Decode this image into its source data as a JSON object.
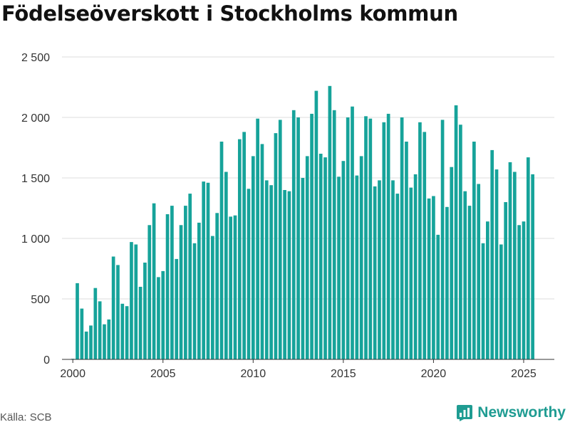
{
  "title": "Födelseöverskott i Stockholms kommun",
  "source": "Källa: SCB",
  "brand": {
    "name": "Newsworthy",
    "icon": "newsworthy-logo-icon"
  },
  "colors": {
    "bar": "#16a39a",
    "grid": "#dddddd",
    "axis": "#333333",
    "brand": "#1f9c92"
  },
  "chart_data": {
    "type": "bar",
    "title": "Födelseöverskott i Stockholms kommun",
    "xlabel": "",
    "ylabel": "",
    "ylim": [
      0,
      2500
    ],
    "yticks": [
      0,
      500,
      1000,
      1500,
      2000,
      2500
    ],
    "ytick_labels": [
      "0",
      "500",
      "1 000",
      "1 500",
      "2 000",
      "2 500"
    ],
    "xlim": [
      1999.4,
      2026.7
    ],
    "xticks": [
      2000,
      2005,
      2010,
      2015,
      2020,
      2025
    ],
    "xtick_labels": [
      "2000",
      "2005",
      "2010",
      "2015",
      "2020",
      "2025"
    ],
    "grid": true,
    "start": "2000 Q1",
    "frequency": "quarterly",
    "values": [
      5,
      630,
      420,
      230,
      280,
      590,
      480,
      290,
      330,
      850,
      780,
      460,
      440,
      970,
      950,
      600,
      800,
      1110,
      1290,
      680,
      730,
      1200,
      1270,
      830,
      1110,
      1270,
      1370,
      960,
      1130,
      1470,
      1460,
      1020,
      1210,
      1800,
      1550,
      1180,
      1190,
      1820,
      1880,
      1410,
      1680,
      1990,
      1780,
      1480,
      1440,
      1870,
      1980,
      1400,
      1390,
      2060,
      2000,
      1500,
      1680,
      2030,
      2220,
      1700,
      1670,
      2260,
      2060,
      1510,
      1640,
      2000,
      2090,
      1520,
      1680,
      2010,
      1990,
      1430,
      1480,
      1960,
      2030,
      1480,
      1370,
      2000,
      1800,
      1420,
      1530,
      1960,
      1880,
      1330,
      1350,
      1030,
      1980,
      1260,
      1590,
      2100,
      1940,
      1390,
      1270,
      1800,
      1450,
      960,
      1140,
      1730,
      1570,
      950,
      1300,
      1630,
      1550,
      1110,
      1140,
      1670,
      1530
    ]
  }
}
